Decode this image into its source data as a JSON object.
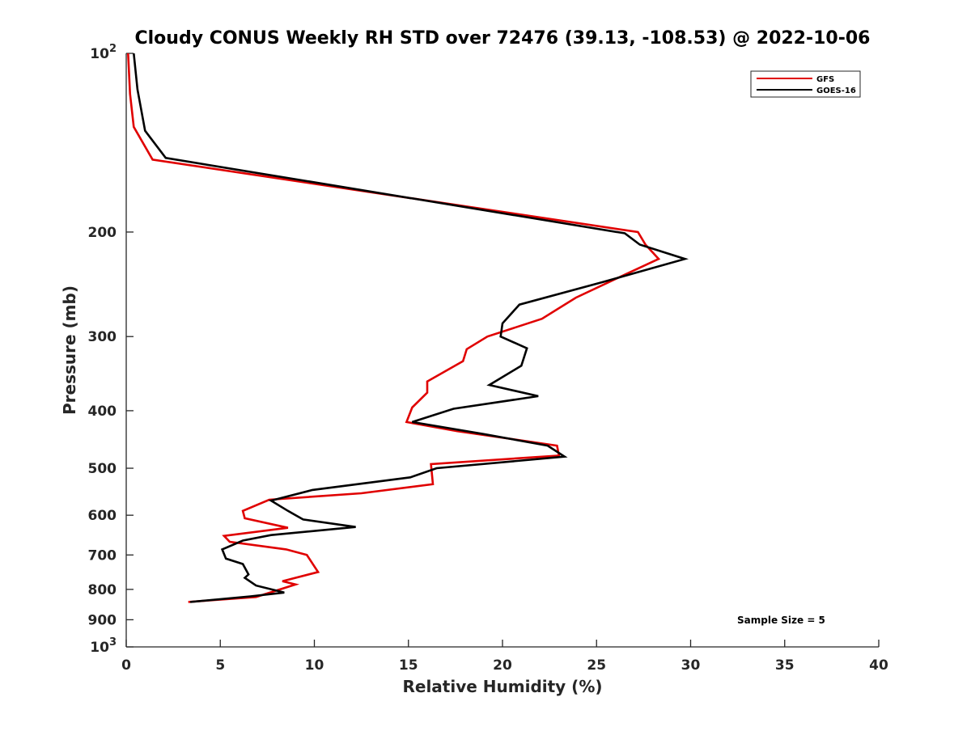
{
  "chart_data": {
    "type": "line",
    "title": "Cloudy CONUS Weekly RH STD over 72476 (39.13, -108.53) @ 2022-10-06",
    "xlabel": "Relative Humidity (%)",
    "ylabel": "Pressure (mb)",
    "xlim": [
      0,
      40
    ],
    "ylim": [
      1000,
      100
    ],
    "y_scale": "log",
    "y_reversed": true,
    "x_ticks": [
      0,
      5,
      10,
      15,
      20,
      25,
      30,
      35,
      40
    ],
    "x_tick_labels": [
      "0",
      "5",
      "10",
      "15",
      "20",
      "25",
      "30",
      "35",
      "40"
    ],
    "y_ticks": [
      100,
      200,
      300,
      400,
      500,
      600,
      700,
      800,
      900,
      1000
    ],
    "y_tick_labels": [
      {
        "base": "10",
        "exp": "2"
      },
      {
        "base": "200",
        "exp": ""
      },
      {
        "base": "300",
        "exp": ""
      },
      {
        "base": "400",
        "exp": ""
      },
      {
        "base": "500",
        "exp": ""
      },
      {
        "base": "600",
        "exp": ""
      },
      {
        "base": "700",
        "exp": ""
      },
      {
        "base": "800",
        "exp": ""
      },
      {
        "base": "900",
        "exp": ""
      },
      {
        "base": "10",
        "exp": "3"
      }
    ],
    "grid": false,
    "legend_position": "top-right",
    "annotation": "Sample Size = 5",
    "series": [
      {
        "name": "GFS",
        "color": "#e00000",
        "x": [
          0.1,
          0.2,
          0.4,
          1.4,
          27.2,
          27.6,
          28.3,
          26.5,
          23.9,
          22.1,
          19.2,
          18.1,
          17.9,
          16.0,
          16.0,
          15.2,
          14.9,
          17.6,
          22.9,
          23.0,
          16.2,
          16.3,
          12.5,
          7.6,
          6.2,
          6.3,
          8.6,
          5.2,
          5.5,
          8.5,
          9.6,
          10.2,
          8.3,
          9.0,
          6.9,
          3.3
        ],
        "y": [
          100,
          117,
          133,
          151,
          200,
          210,
          222,
          236,
          258,
          280,
          300,
          315,
          330,
          357,
          373,
          395,
          418,
          433,
          458,
          476,
          492,
          532,
          551,
          565,
          590,
          607,
          630,
          650,
          665,
          685,
          700,
          748,
          775,
          785,
          824,
          840
        ]
      },
      {
        "name": "GOES-16",
        "color": "#000000",
        "x": [
          0.4,
          0.6,
          1.0,
          2.1,
          26.5,
          27.3,
          29.7,
          25.3,
          20.9,
          20.0,
          19.9,
          21.3,
          21.0,
          19.3,
          21.9,
          17.4,
          15.2,
          19.0,
          22.4,
          23.3,
          16.5,
          15.1,
          9.9,
          7.7,
          8.6,
          9.4,
          12.2,
          7.7,
          6.2,
          5.1,
          5.3,
          6.2,
          6.5,
          6.3,
          6.9,
          8.4,
          6.6,
          3.4
        ],
        "y": [
          100,
          115,
          135,
          150,
          201,
          210,
          222,
          243,
          265,
          285,
          300,
          314,
          336,
          362,
          378,
          397,
          418,
          438,
          458,
          478,
          500,
          518,
          544,
          567,
          590,
          610,
          628,
          648,
          662,
          685,
          710,
          725,
          755,
          765,
          788,
          810,
          822,
          840
        ]
      }
    ]
  }
}
